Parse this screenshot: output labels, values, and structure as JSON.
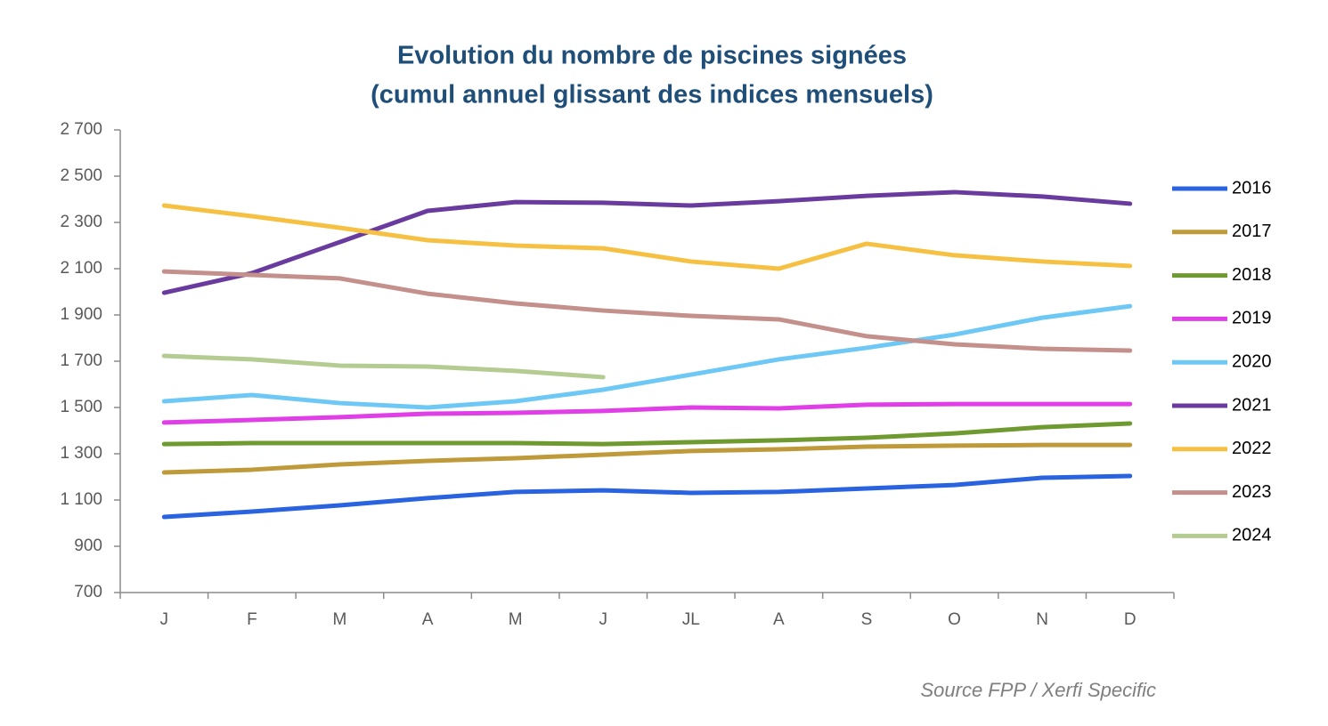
{
  "chart_data": {
    "type": "line",
    "title": "Evolution du nombre de piscines signées",
    "subtitle": "(cumul annuel glissant des indices mensuels)",
    "source": "Source FPP / Xerfi Specific",
    "categories": [
      "J",
      "F",
      "M",
      "A",
      "M",
      "J",
      "JL",
      "A",
      "S",
      "O",
      "N",
      "D"
    ],
    "ylim": [
      700,
      2700
    ],
    "yticks": [
      {
        "value": 700,
        "label": "700"
      },
      {
        "value": 900,
        "label": "900"
      },
      {
        "value": 1100,
        "label": "1 100"
      },
      {
        "value": 1300,
        "label": "1 300"
      },
      {
        "value": 1500,
        "label": "1 500"
      },
      {
        "value": 1700,
        "label": "1 700"
      },
      {
        "value": 1900,
        "label": "1 900"
      },
      {
        "value": 2100,
        "label": "2 100"
      },
      {
        "value": 2300,
        "label": "2 300"
      },
      {
        "value": 2500,
        "label": "2 500"
      },
      {
        "value": 2700,
        "label": "2 700"
      }
    ],
    "grid": false,
    "legend": "right",
    "series": [
      {
        "name": "2016",
        "color": "#2a63e0",
        "values": [
          1027,
          1050,
          1077,
          1108,
          1135,
          1142,
          1131,
          1135,
          1150,
          1165,
          1196,
          1204
        ]
      },
      {
        "name": "2017",
        "color": "#bf9a3a",
        "values": [
          1219,
          1231,
          1254,
          1269,
          1281,
          1296,
          1312,
          1319,
          1331,
          1335,
          1338,
          1338
        ]
      },
      {
        "name": "2018",
        "color": "#6e9a30",
        "values": [
          1342,
          1346,
          1346,
          1346,
          1346,
          1342,
          1350,
          1358,
          1369,
          1388,
          1415,
          1431
        ]
      },
      {
        "name": "2019",
        "color": "#e03ee6",
        "values": [
          1435,
          1446,
          1458,
          1473,
          1477,
          1485,
          1500,
          1496,
          1512,
          1515,
          1515,
          1515
        ]
      },
      {
        "name": "2020",
        "color": "#6ec8f5",
        "values": [
          1527,
          1554,
          1519,
          1500,
          1527,
          1577,
          1642,
          1708,
          1758,
          1815,
          1888,
          1938
        ]
      },
      {
        "name": "2021",
        "color": "#6a3b9e",
        "values": [
          1996,
          2081,
          2215,
          2350,
          2388,
          2385,
          2373,
          2392,
          2415,
          2431,
          2412,
          2381
        ]
      },
      {
        "name": "2022",
        "color": "#f6c142",
        "values": [
          2373,
          2327,
          2277,
          2223,
          2200,
          2188,
          2131,
          2100,
          2208,
          2158,
          2131,
          2112
        ]
      },
      {
        "name": "2023",
        "color": "#c4908b",
        "values": [
          2088,
          2073,
          2058,
          1992,
          1950,
          1919,
          1896,
          1881,
          1808,
          1773,
          1754,
          1746
        ]
      },
      {
        "name": "2024",
        "color": "#b4cb92",
        "values": [
          1723,
          1708,
          1681,
          1677,
          1658,
          1631,
          null,
          null,
          null,
          null,
          null,
          null
        ]
      }
    ]
  }
}
